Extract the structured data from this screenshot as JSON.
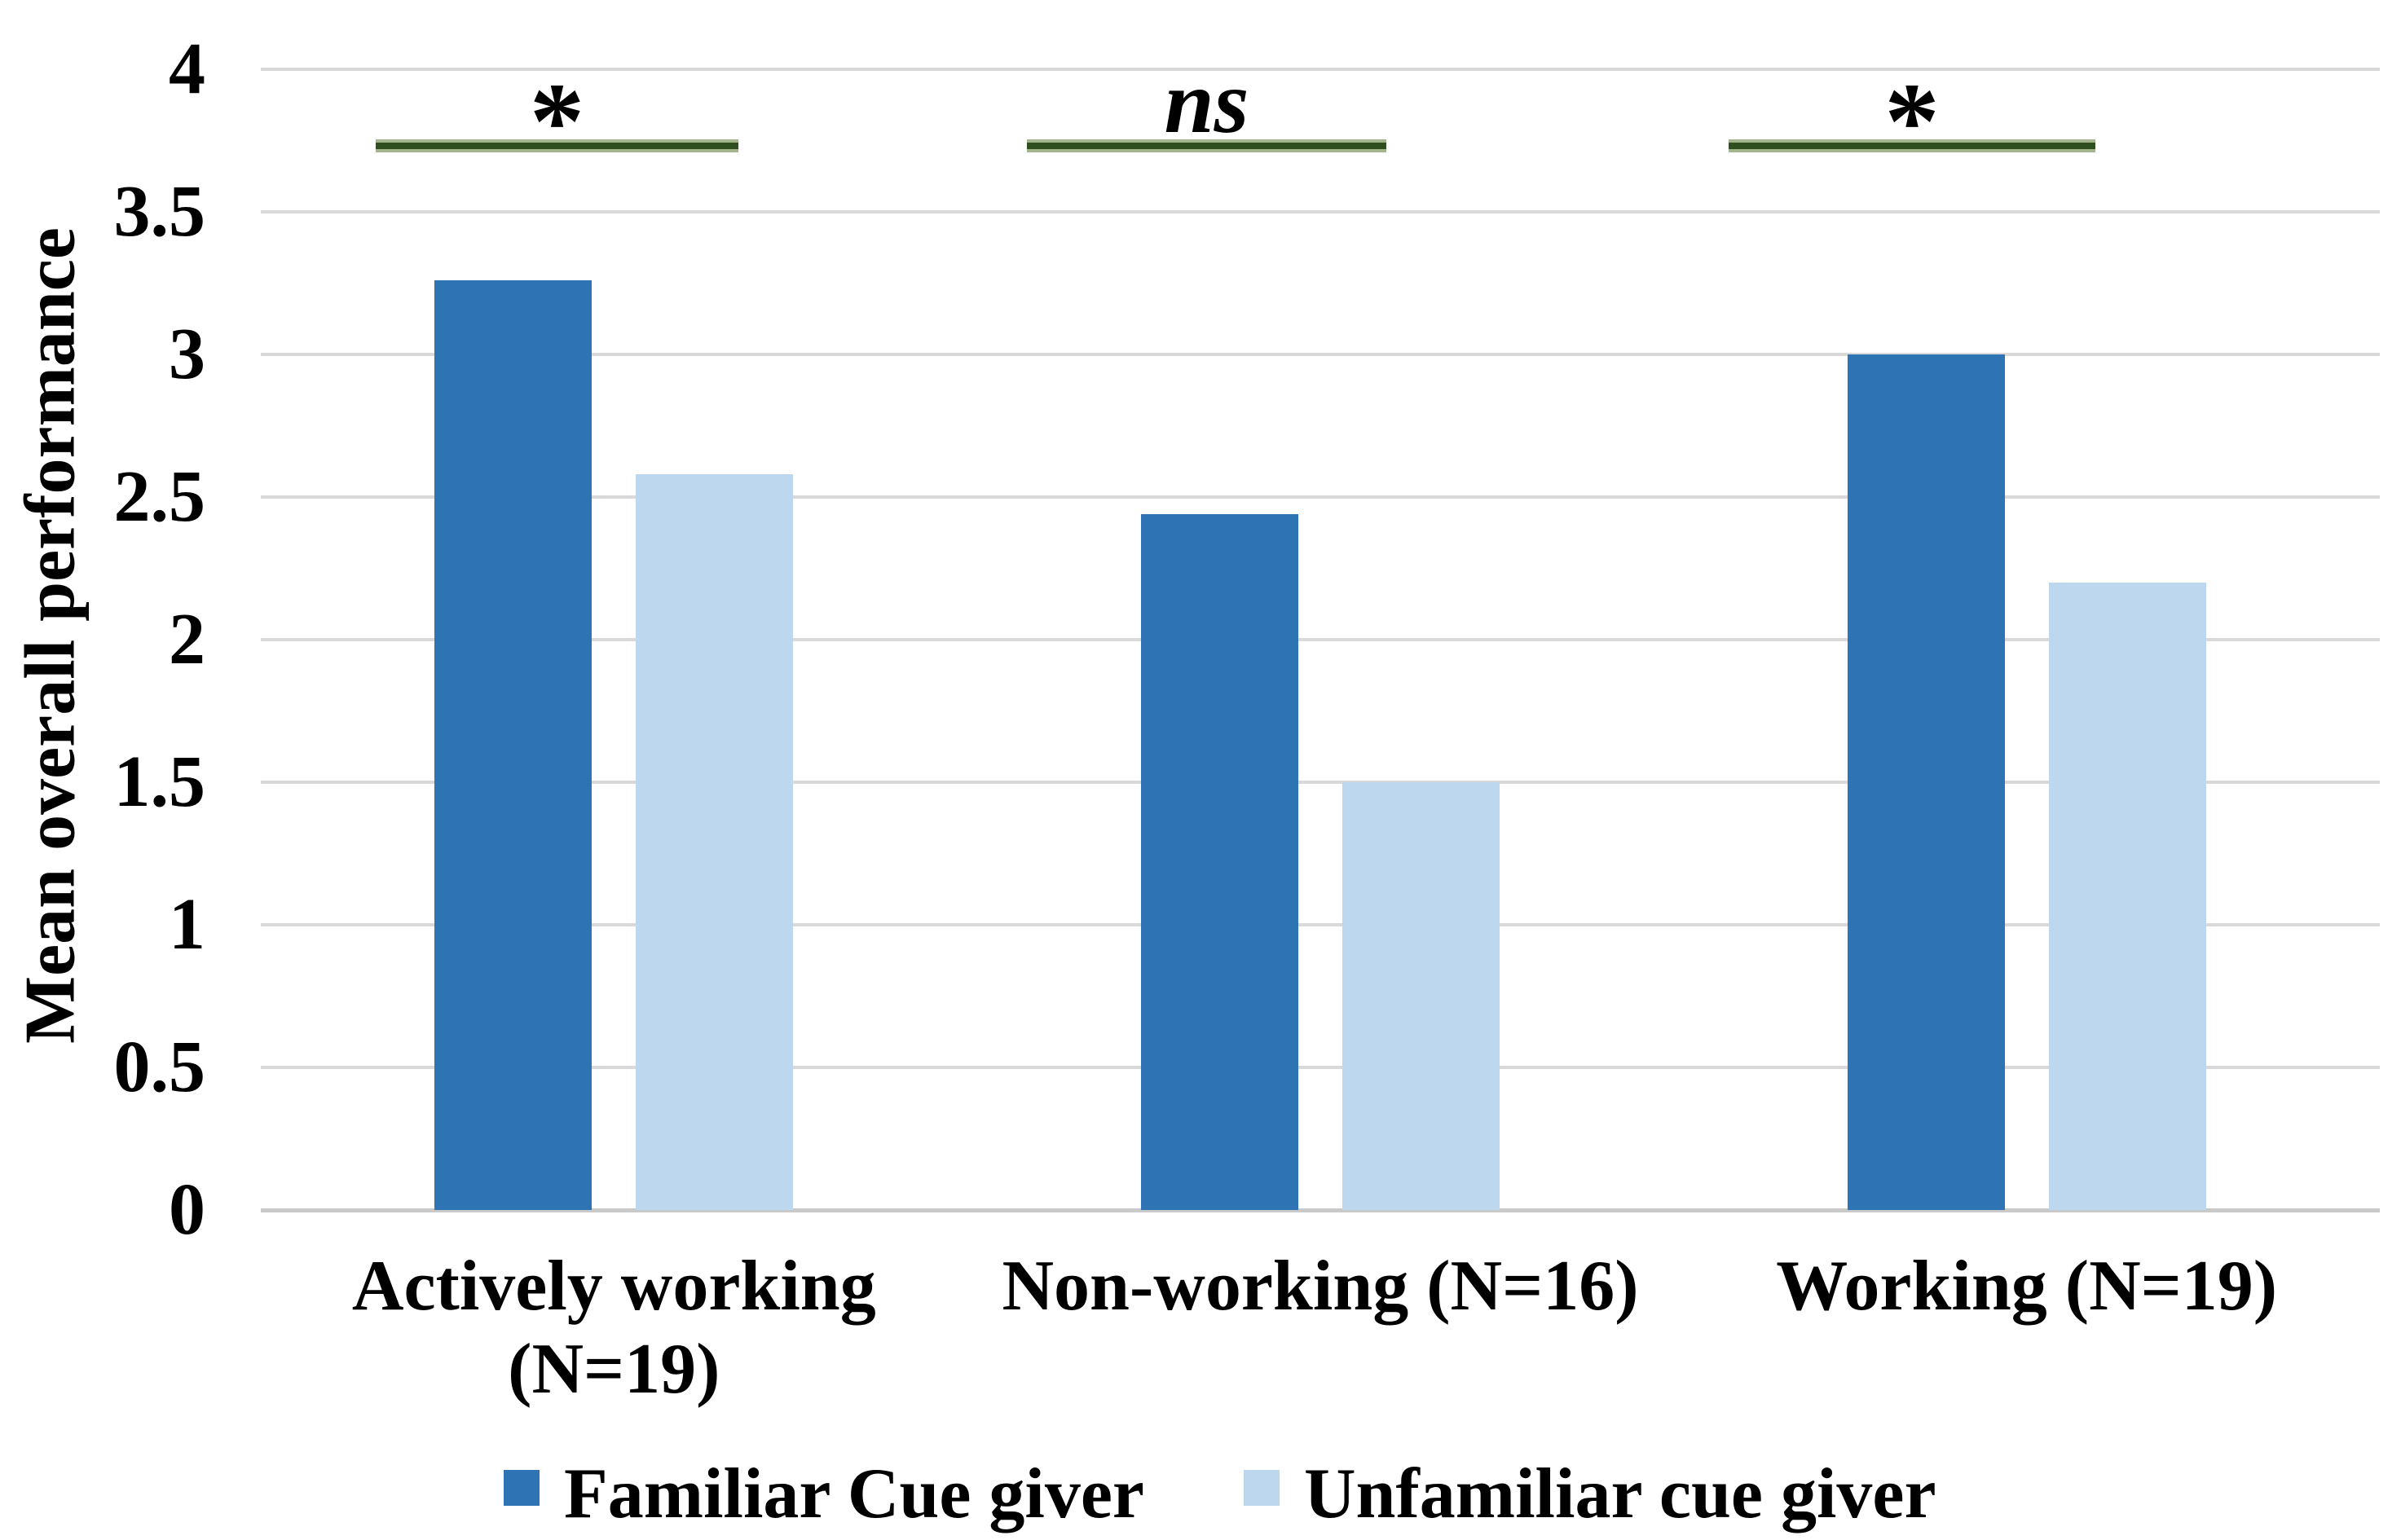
{
  "figure": {
    "background": "#FFFFFF"
  },
  "chart_data": {
    "type": "bar",
    "title": "",
    "ylabel": "Mean overall performance",
    "categories": [
      "Actively working (N=19)",
      "Non-working (N=16)",
      "Working (N=19)"
    ],
    "series": [
      {
        "name": "Familiar Cue giver",
        "color": "#2E74B5",
        "values": [
          3.26,
          2.44,
          3.0
        ]
      },
      {
        "name": "Unfamiliar cue giver",
        "color": "#BDD7EE",
        "values": [
          2.58,
          1.5,
          2.2
        ]
      }
    ],
    "ylim": [
      0,
      4
    ],
    "yticks": [
      0,
      0.5,
      1,
      1.5,
      2,
      2.5,
      3,
      3.5,
      4
    ],
    "grid": true,
    "gridline_color": "#D9D9D9",
    "axis_line_color": "#C9C9C9",
    "legend_position": "bottom",
    "significance": [
      {
        "category": "Actively working (N=19)",
        "label": "*"
      },
      {
        "category": "Non-working (N=16)",
        "label": "ns"
      },
      {
        "category": "Working (N=19)",
        "label": "*"
      }
    ],
    "sig_line_color": "#2F4F1E",
    "sig_line_halo_color": "#A4B48D"
  }
}
